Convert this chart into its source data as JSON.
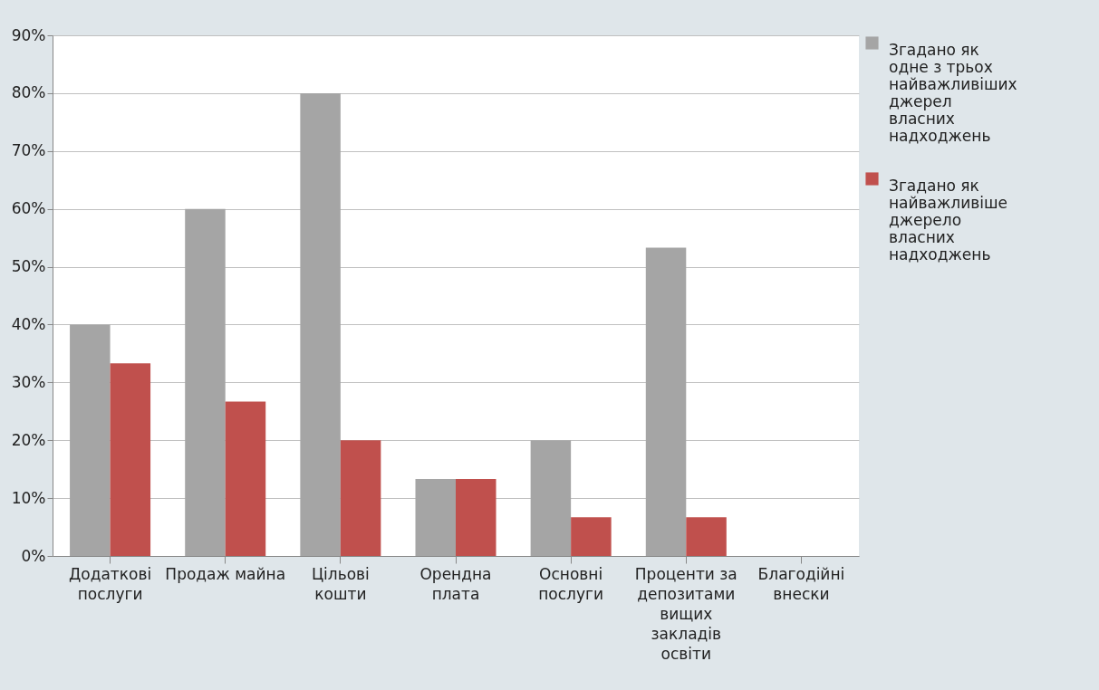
{
  "chart_data": {
    "type": "bar",
    "categories": [
      "Додаткові послуги",
      "Продаж майна",
      "Цільові кошти",
      "Орендна плата",
      "Основні послуги",
      "Проценти за депозитами вищих закладів освіти",
      "Благодійні внески"
    ],
    "series": [
      {
        "name": "Згадано як одне з трьох найважливіших джерел власних надходжень",
        "color": "#a5a5a5",
        "values": [
          40,
          60,
          80,
          13.3,
          20,
          53.3,
          0
        ]
      },
      {
        "name": "Згадано як найважливіше джерело власних надходжень",
        "color": "#c0504d",
        "values": [
          33.3,
          26.7,
          20,
          13.3,
          6.7,
          6.7,
          0
        ]
      }
    ],
    "ylim": [
      0,
      90
    ],
    "yticks": [
      {
        "value": 0,
        "label": "0%"
      },
      {
        "value": 10,
        "label": "10%"
      },
      {
        "value": 20,
        "label": "20%"
      },
      {
        "value": 30,
        "label": "30%"
      },
      {
        "value": 40,
        "label": "40%"
      },
      {
        "value": 50,
        "label": "50%"
      },
      {
        "value": 60,
        "label": "60%"
      },
      {
        "value": 70,
        "label": "70%"
      },
      {
        "value": 80,
        "label": "80%"
      },
      {
        "value": 90,
        "label": "90%"
      }
    ],
    "grid": "y",
    "legend": "right"
  }
}
